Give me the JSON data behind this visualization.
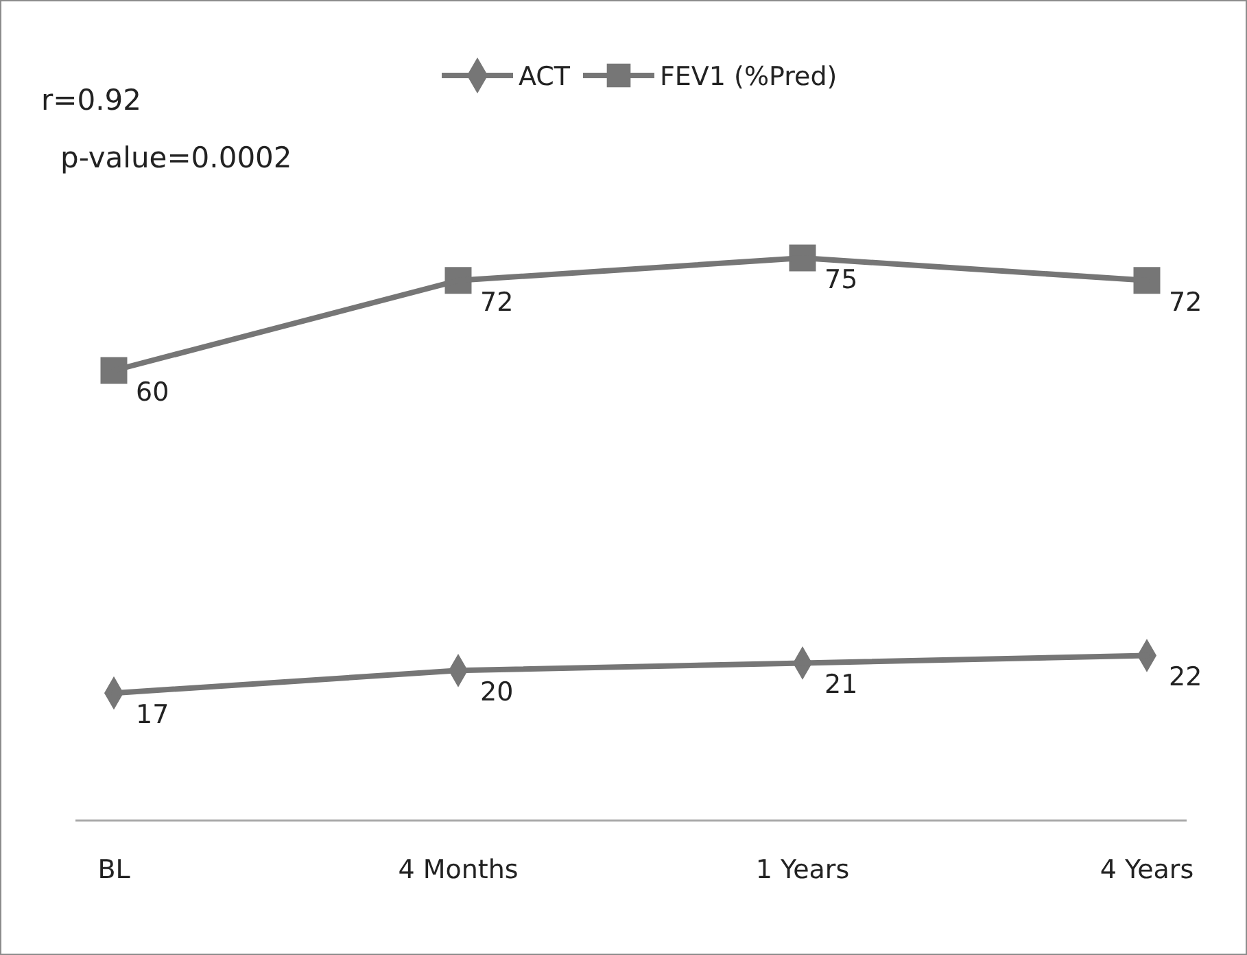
{
  "chart_data": {
    "type": "line",
    "categories": [
      "BL",
      "4 Months",
      "1 Years",
      "4 Years"
    ],
    "series": [
      {
        "name": "ACT",
        "color": "#767676",
        "values": [
          17,
          20,
          21,
          22
        ],
        "marker": "diamond"
      },
      {
        "name": "FEV1 (%Pred)",
        "color": "#767676",
        "values": [
          60,
          72,
          75,
          72
        ],
        "marker": "square"
      }
    ],
    "data_labels": true,
    "legend": "top",
    "tick_labels": "x",
    "grid": false,
    "line_style": "solid",
    "annotations": [
      "r=0.92",
      "p-value=0.0002"
    ]
  }
}
